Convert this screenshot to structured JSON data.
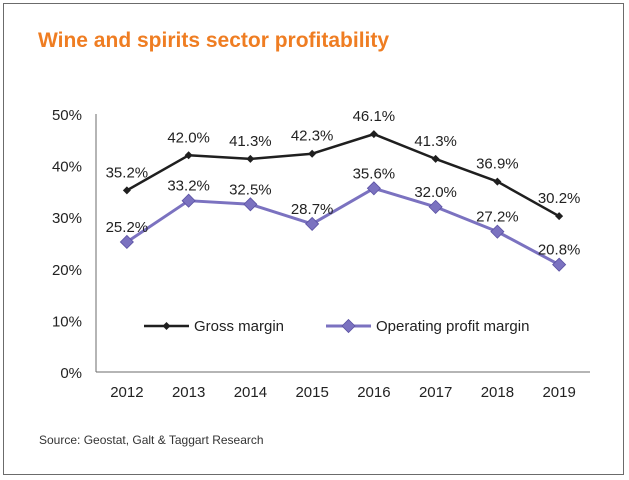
{
  "title": "Wine and spirits sector  profitability",
  "source": "Source: Geostat, Galt & Taggart Research",
  "colors": {
    "title": "#ef7d22",
    "gross": "#1f1f1f",
    "operating": "#7b72c0",
    "operating_edge": "#5b52a3",
    "axis": "#6b6b6b"
  },
  "chart_data": {
    "type": "line",
    "title": "Wine and spirits sector  profitability",
    "x": [
      "2012",
      "2013",
      "2014",
      "2015",
      "2016",
      "2017",
      "2018",
      "2019"
    ],
    "ylim": [
      0,
      50
    ],
    "y_ticks": [
      "0%",
      "10%",
      "20%",
      "30%",
      "40%",
      "50%"
    ],
    "grid": false,
    "legend_position": "bottom-center-inside",
    "series": [
      {
        "name": "Gross margin",
        "values": [
          35.2,
          42.0,
          41.3,
          42.3,
          46.1,
          41.3,
          36.9,
          30.2
        ],
        "labels": [
          "35.2%",
          "42.0%",
          "41.3%",
          "42.3%",
          "46.1%",
          "41.3%",
          "36.9%",
          "30.2%"
        ]
      },
      {
        "name": "Operating profit margin",
        "values": [
          25.2,
          33.2,
          32.5,
          28.7,
          35.6,
          32.0,
          27.2,
          20.8
        ],
        "labels": [
          "25.2%",
          "33.2%",
          "32.5%",
          "28.7%",
          "35.6%",
          "32.0%",
          "27.2%",
          "20.8%"
        ]
      }
    ]
  }
}
